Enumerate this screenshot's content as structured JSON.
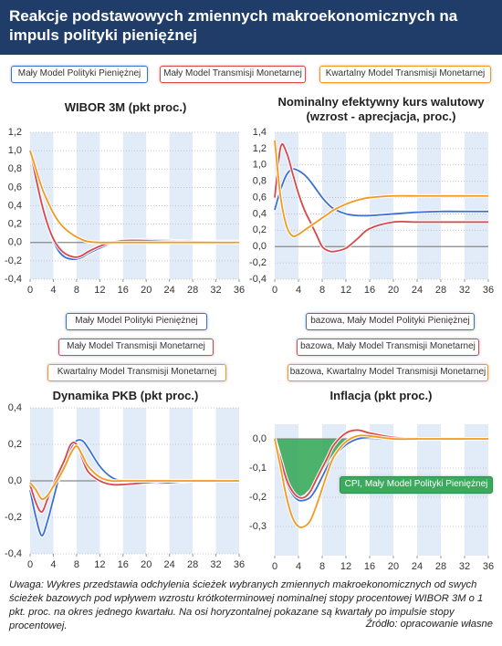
{
  "header": {
    "title": "Reakcje podstawowych zmiennych makroekonomicznych na impuls polityki pieniężnej"
  },
  "chart_data": [
    {
      "type": "line",
      "title": "WIBOR 3M (pkt proc.)",
      "x": [
        0,
        1,
        2,
        3,
        4,
        5,
        6,
        7,
        8,
        9,
        10,
        12,
        14,
        16,
        20,
        24,
        28,
        32,
        36
      ],
      "xlim": [
        0,
        36
      ],
      "xticks": [
        0,
        4,
        8,
        12,
        16,
        20,
        24,
        28,
        32,
        36
      ],
      "ylim": [
        -0.4,
        1.2
      ],
      "yticks": [
        {
          "value": 1.2,
          "label": "1,2"
        },
        {
          "value": 1.0,
          "label": "1,0"
        },
        {
          "value": 0.8,
          "label": "0,8"
        },
        {
          "value": 0.6,
          "label": "0,6"
        },
        {
          "value": 0.4,
          "label": "0,4"
        },
        {
          "value": 0.2,
          "label": "0,2"
        },
        {
          "value": 0,
          "label": "0,0"
        },
        {
          "value": -0.2,
          "label": "-0,2"
        },
        {
          "value": -0.4,
          "label": "-0,4"
        }
      ],
      "series": [
        {
          "name": "Mały Model Polityki Pieniężnej",
          "color": "#3a6fd8",
          "values": [
            1.0,
            0.75,
            0.45,
            0.2,
            0.02,
            -0.1,
            -0.16,
            -0.18,
            -0.18,
            -0.16,
            -0.12,
            -0.06,
            -0.01,
            0.02,
            0.03,
            0.02,
            0.01,
            0.01,
            0.01
          ]
        },
        {
          "name": "Mały Model Transmisji Monetarnej",
          "color": "#d9474a",
          "values": [
            1.0,
            0.7,
            0.42,
            0.2,
            0.04,
            -0.06,
            -0.12,
            -0.15,
            -0.16,
            -0.14,
            -0.1,
            -0.04,
            0,
            0.02,
            0.02,
            0.01,
            0.01,
            0,
            0
          ]
        },
        {
          "name": "Kwartalny Model Transmisji Monetarnej",
          "color": "#f39a1e",
          "values": [
            1.0,
            0.8,
            0.6,
            0.45,
            0.32,
            0.22,
            0.15,
            0.1,
            0.06,
            0.03,
            0.01,
            0,
            0,
            0,
            0,
            0,
            0,
            0,
            0
          ]
        }
      ]
    },
    {
      "type": "line",
      "title": "Nominalny efektywny kurs walutowy (wzrost - aprecjacja, proc.)",
      "x": [
        0,
        1,
        2,
        3,
        4,
        5,
        6,
        7,
        8,
        9,
        10,
        12,
        14,
        16,
        20,
        24,
        28,
        32,
        36
      ],
      "xlim": [
        0,
        36
      ],
      "xticks": [
        0,
        4,
        8,
        12,
        16,
        20,
        24,
        28,
        32,
        36
      ],
      "ylim": [
        -0.4,
        1.4
      ],
      "yticks": [
        {
          "value": 1.4,
          "label": "1,4"
        },
        {
          "value": 1.2,
          "label": "1,2"
        },
        {
          "value": 1.0,
          "label": "1,0"
        },
        {
          "value": 0.8,
          "label": "0,8"
        },
        {
          "value": 0.6,
          "label": "0,6"
        },
        {
          "value": 0.4,
          "label": "0,4"
        },
        {
          "value": 0.2,
          "label": "0,2"
        },
        {
          "value": 0,
          "label": "0,0"
        },
        {
          "value": -0.2,
          "label": "-0,2"
        },
        {
          "value": -0.4,
          "label": "-0,4"
        }
      ],
      "series": [
        {
          "color": "#3a6fd8",
          "values": [
            0.45,
            0.7,
            0.88,
            0.95,
            0.93,
            0.88,
            0.8,
            0.7,
            0.6,
            0.52,
            0.46,
            0.4,
            0.38,
            0.38,
            0.4,
            0.42,
            0.43,
            0.43,
            0.43
          ]
        },
        {
          "color": "#d9474a",
          "values": [
            0.6,
            1.22,
            1.15,
            0.9,
            0.65,
            0.45,
            0.3,
            0.15,
            0.0,
            -0.05,
            -0.06,
            -0.02,
            0.1,
            0.22,
            0.3,
            0.3,
            0.3,
            0.3,
            0.3
          ]
        },
        {
          "color": "#f39a1e",
          "values": [
            1.3,
            0.6,
            0.25,
            0.13,
            0.15,
            0.2,
            0.25,
            0.3,
            0.35,
            0.4,
            0.45,
            0.52,
            0.57,
            0.6,
            0.62,
            0.62,
            0.62,
            0.62,
            0.62
          ]
        }
      ]
    },
    {
      "type": "line",
      "title": "Dynamika PKB (pkt proc.)",
      "x": [
        0,
        1,
        2,
        3,
        4,
        5,
        6,
        7,
        8,
        9,
        10,
        12,
        14,
        16,
        20,
        24,
        28,
        32,
        36
      ],
      "xlim": [
        0,
        36
      ],
      "xticks": [
        0,
        4,
        8,
        12,
        16,
        20,
        24,
        28,
        32,
        36
      ],
      "ylim": [
        -0.4,
        0.4
      ],
      "yticks": [
        {
          "value": 0.4,
          "label": "0,4"
        },
        {
          "value": 0.2,
          "label": "0,2"
        },
        {
          "value": 0,
          "label": "0,0"
        },
        {
          "value": -0.2,
          "label": "-0,2"
        },
        {
          "value": -0.4,
          "label": "-0,4"
        }
      ],
      "series": [
        {
          "name": "Mały Model Polityki Pieniężnej",
          "color": "#3a6fd8",
          "values": [
            -0.05,
            -0.2,
            -0.3,
            -0.22,
            -0.1,
            0.02,
            0.1,
            0.18,
            0.22,
            0.22,
            0.18,
            0.08,
            0.02,
            0,
            -0.01,
            -0.01,
            0,
            0,
            0
          ]
        },
        {
          "name": "Mały Model Transmisji Monetarnej",
          "color": "#d9474a",
          "values": [
            -0.02,
            -0.12,
            -0.17,
            -0.1,
            -0.02,
            0.05,
            0.12,
            0.2,
            0.2,
            0.12,
            0.05,
            0,
            -0.02,
            -0.02,
            -0.01,
            0,
            0,
            0,
            0
          ]
        },
        {
          "name": "Kwartalny Model Transmisji Monetarnej",
          "color": "#f39a1e",
          "values": [
            -0.01,
            -0.05,
            -0.1,
            -0.08,
            -0.03,
            0.02,
            0.08,
            0.15,
            0.19,
            0.14,
            0.08,
            0.02,
            0,
            0,
            0,
            0,
            0,
            0,
            0
          ]
        }
      ]
    },
    {
      "type": "line",
      "title": "Inflacja (pkt proc.)",
      "x": [
        0,
        1,
        2,
        3,
        4,
        5,
        6,
        7,
        8,
        9,
        10,
        12,
        14,
        16,
        20,
        24,
        28,
        32,
        36
      ],
      "xlim": [
        0,
        36
      ],
      "xticks": [
        0,
        4,
        8,
        12,
        16,
        20,
        24,
        28,
        32,
        36
      ],
      "ylim": [
        -0.4,
        0.05
      ],
      "yticks": [
        {
          "value": 0,
          "label": "0,0"
        },
        {
          "value": -0.1,
          "label": "-0,1"
        },
        {
          "value": -0.2,
          "label": "-0,2"
        },
        {
          "value": -0.3,
          "label": "-0,3"
        }
      ],
      "series": [
        {
          "name": "CPI, Mały Model Polityki Pieniężnej",
          "type": "area",
          "color": "#3aaa5c",
          "values": [
            0,
            -0.09,
            -0.16,
            -0.2,
            -0.2,
            -0.19,
            -0.17,
            -0.14,
            -0.11,
            -0.08,
            -0.05,
            -0.02,
            0,
            0,
            0,
            0,
            0,
            0,
            0
          ]
        },
        {
          "name": "bazowa, Mały Model Polityki Pieniężnej",
          "color": "#3a6fd8",
          "values": [
            0,
            -0.08,
            -0.15,
            -0.19,
            -0.21,
            -0.21,
            -0.2,
            -0.17,
            -0.13,
            -0.09,
            -0.06,
            -0.02,
            0,
            0.005,
            0.005,
            0,
            0,
            0,
            0
          ]
        },
        {
          "name": "bazowa, Mały Model Transmisji Monetarnej",
          "color": "#d9474a",
          "values": [
            0,
            -0.07,
            -0.14,
            -0.18,
            -0.2,
            -0.2,
            -0.18,
            -0.14,
            -0.1,
            -0.06,
            -0.02,
            0.02,
            0.03,
            0.02,
            0.005,
            0,
            0,
            0,
            0
          ]
        },
        {
          "name": "bazowa, Kwartalny Model Transmisji Monetarnej",
          "color": "#f39a1e",
          "values": [
            0,
            -0.1,
            -0.2,
            -0.27,
            -0.3,
            -0.3,
            -0.28,
            -0.23,
            -0.17,
            -0.11,
            -0.06,
            -0.01,
            0.01,
            0.01,
            0,
            0,
            0,
            0,
            0
          ]
        }
      ]
    }
  ],
  "footer": {
    "note": "Uwaga: Wykres przedstawia odchylenia ścieżek wybranych zmiennych makroekonomicznych od swych ścieżek bazowych pod wpływem wzrostu krótkoterminowej nominalnej stopy procentowej WIBOR 3M o 1 pkt. proc. na okres jednego kwartału. Na osi horyzontalnej pokazane są kwartały po impulsie stopy procentowej.",
    "source": "Źródło: opracowanie własne"
  }
}
